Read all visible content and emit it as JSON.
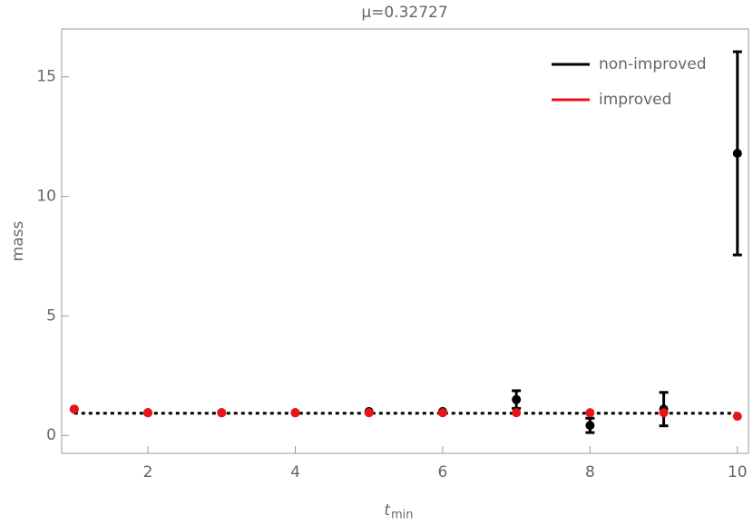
{
  "chart_data": {
    "type": "errorbar",
    "title": "μ=0.32727",
    "x_label": {
      "main": "t",
      "sub": "min"
    },
    "y_label": "mass",
    "x": [
      1,
      2,
      3,
      4,
      5,
      6,
      7,
      8,
      9,
      10
    ],
    "series": [
      {
        "name": "non-improved",
        "color": "#000000",
        "values": [
          1.1,
          0.95,
          0.95,
          0.95,
          1.0,
          1.0,
          1.5,
          0.42,
          1.1,
          11.8
        ],
        "errors": [
          null,
          null,
          null,
          null,
          null,
          null,
          0.37,
          0.3,
          0.7,
          4.25
        ]
      },
      {
        "name": "improved",
        "color": "#e8141a",
        "values": [
          1.1,
          0.95,
          0.95,
          0.95,
          0.95,
          0.95,
          0.95,
          0.95,
          0.95,
          0.8
        ]
      }
    ],
    "reference_line": 0.93,
    "xlim": [
      0.83,
      10.15
    ],
    "ylim": [
      -0.75,
      17
    ],
    "xticks": [
      2,
      4,
      6,
      8,
      10
    ],
    "yticks": [
      0,
      5,
      10,
      15
    ],
    "legend": "upper right"
  }
}
